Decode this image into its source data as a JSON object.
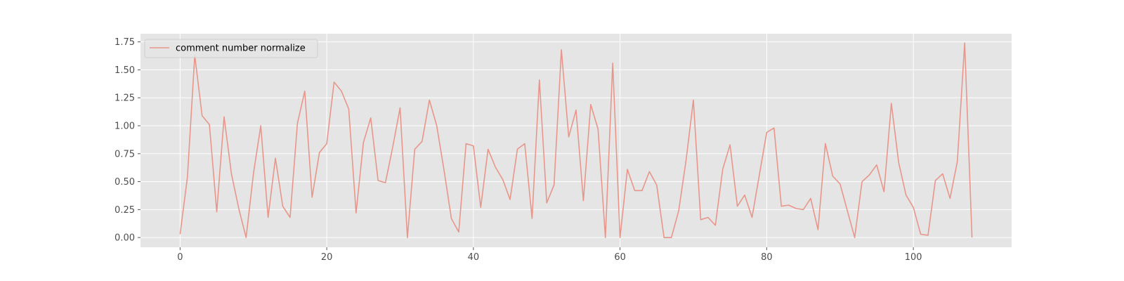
{
  "chart_data": {
    "type": "line",
    "title": "",
    "xlabel": "",
    "ylabel": "",
    "xlim": [
      -5.4,
      113.4
    ],
    "ylim": [
      -0.087,
      1.823
    ],
    "xticks": [
      0,
      20,
      40,
      60,
      80,
      100
    ],
    "yticks": [
      0.0,
      0.25,
      0.5,
      0.75,
      1.0,
      1.25,
      1.5,
      1.75
    ],
    "xtick_labels": [
      "0",
      "20",
      "40",
      "60",
      "80",
      "100"
    ],
    "ytick_labels": [
      "0.00",
      "0.25",
      "0.50",
      "0.75",
      "1.00",
      "1.25",
      "1.50",
      "1.75"
    ],
    "grid": true,
    "legend_position": "top-left",
    "background_color": "#e5e5e5",
    "grid_color": "#ffffff",
    "series": [
      {
        "name": "comment number normalize",
        "color": "#e8968a",
        "x": [
          0,
          1,
          2,
          3,
          4,
          5,
          6,
          7,
          8,
          9,
          10,
          11,
          12,
          13,
          14,
          15,
          16,
          17,
          18,
          19,
          20,
          21,
          22,
          23,
          24,
          25,
          26,
          27,
          28,
          29,
          30,
          31,
          32,
          33,
          34,
          35,
          36,
          37,
          38,
          39,
          40,
          41,
          42,
          43,
          44,
          45,
          46,
          47,
          48,
          49,
          50,
          51,
          52,
          53,
          54,
          55,
          56,
          57,
          58,
          59,
          60,
          61,
          62,
          63,
          64,
          65,
          66,
          67,
          68,
          69,
          70,
          71,
          72,
          73,
          74,
          75,
          76,
          77,
          78,
          79,
          80,
          81,
          82,
          83,
          84,
          85,
          86,
          87,
          88,
          89,
          90,
          91,
          92,
          93,
          94,
          95,
          96,
          97,
          98,
          99,
          100,
          101,
          102,
          103,
          104,
          105,
          106,
          107,
          108
        ],
        "values": [
          0.03,
          0.54,
          1.63,
          1.09,
          1.01,
          0.23,
          1.08,
          0.57,
          0.26,
          0.0,
          0.57,
          1.0,
          0.18,
          0.71,
          0.28,
          0.18,
          1.02,
          1.31,
          0.36,
          0.76,
          0.84,
          1.39,
          1.31,
          1.15,
          0.22,
          0.85,
          1.07,
          0.51,
          0.49,
          0.81,
          1.16,
          0.0,
          0.79,
          0.86,
          1.23,
          1.0,
          0.6,
          0.17,
          0.05,
          0.84,
          0.82,
          0.27,
          0.79,
          0.63,
          0.52,
          0.34,
          0.79,
          0.84,
          0.17,
          1.41,
          0.31,
          0.47,
          1.68,
          0.9,
          1.14,
          0.33,
          1.19,
          0.97,
          0.0,
          1.56,
          0.0,
          0.61,
          0.42,
          0.42,
          0.59,
          0.47,
          0.0,
          0.0,
          0.24,
          0.69,
          1.23,
          0.16,
          0.18,
          0.11,
          0.61,
          0.83,
          0.28,
          0.38,
          0.18,
          0.56,
          0.94,
          0.98,
          0.28,
          0.29,
          0.26,
          0.25,
          0.35,
          0.07,
          0.84,
          0.55,
          0.48,
          0.24,
          0.0,
          0.5,
          0.56,
          0.65,
          0.41,
          1.2,
          0.67,
          0.38,
          0.27,
          0.03,
          0.02,
          0.51,
          0.57,
          0.35,
          0.68,
          1.74,
          0.0
        ]
      }
    ]
  }
}
